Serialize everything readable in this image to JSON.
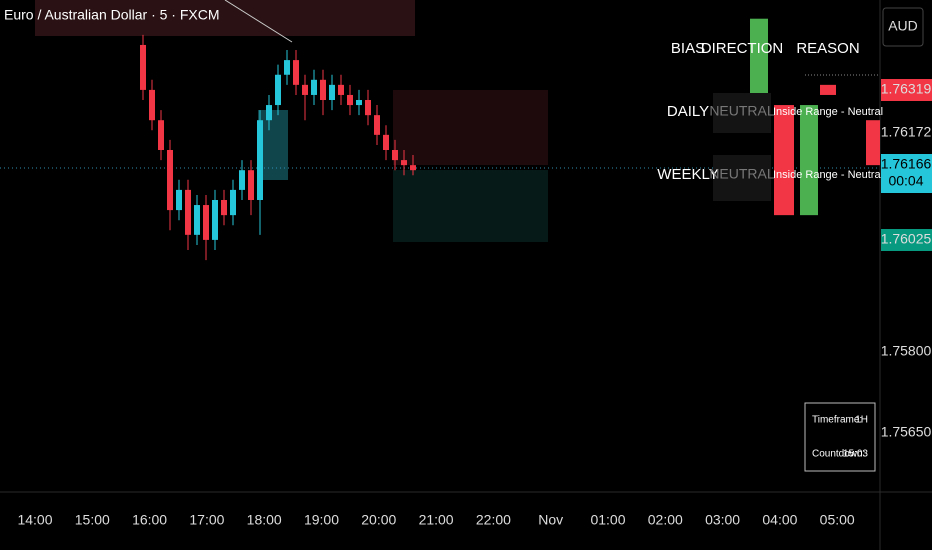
{
  "header": {
    "title": "Euro / Australian Dollar · 5 · FXCM",
    "currency": "AUD"
  },
  "chart": {
    "candles": [
      {
        "o": 1.76408,
        "h": 1.76428,
        "l": 1.76299,
        "c": 1.76319
      },
      {
        "o": 1.76319,
        "h": 1.76339,
        "l": 1.76239,
        "c": 1.76259
      },
      {
        "o": 1.76259,
        "h": 1.76279,
        "l": 1.7618,
        "c": 1.762
      },
      {
        "o": 1.762,
        "h": 1.7622,
        "l": 1.76041,
        "c": 1.76081
      },
      {
        "o": 1.76081,
        "h": 1.76141,
        "l": 1.76061,
        "c": 1.76121
      },
      {
        "o": 1.76121,
        "h": 1.76141,
        "l": 1.76002,
        "c": 1.76032
      },
      {
        "o": 1.76032,
        "h": 1.76111,
        "l": 1.76012,
        "c": 1.76091
      },
      {
        "o": 1.76091,
        "h": 1.76111,
        "l": 1.75982,
        "c": 1.76022
      },
      {
        "o": 1.76022,
        "h": 1.76121,
        "l": 1.76002,
        "c": 1.76101
      },
      {
        "o": 1.76101,
        "h": 1.76121,
        "l": 1.76051,
        "c": 1.76071
      },
      {
        "o": 1.76071,
        "h": 1.76141,
        "l": 1.76051,
        "c": 1.76121
      },
      {
        "o": 1.76121,
        "h": 1.7618,
        "l": 1.76101,
        "c": 1.7616
      },
      {
        "o": 1.7616,
        "h": 1.7618,
        "l": 1.76071,
        "c": 1.76101
      },
      {
        "o": 1.76101,
        "h": 1.76279,
        "l": 1.76032,
        "c": 1.76259
      },
      {
        "o": 1.76259,
        "h": 1.76309,
        "l": 1.76239,
        "c": 1.76289
      },
      {
        "o": 1.76289,
        "h": 1.76369,
        "l": 1.76269,
        "c": 1.76349
      },
      {
        "o": 1.76349,
        "h": 1.76398,
        "l": 1.76329,
        "c": 1.76378
      },
      {
        "o": 1.76378,
        "h": 1.76398,
        "l": 1.76309,
        "c": 1.76329
      },
      {
        "o": 1.76329,
        "h": 1.76349,
        "l": 1.76259,
        "c": 1.76309
      },
      {
        "o": 1.76309,
        "h": 1.76359,
        "l": 1.76289,
        "c": 1.76339
      },
      {
        "o": 1.76339,
        "h": 1.76359,
        "l": 1.76269,
        "c": 1.76299
      },
      {
        "o": 1.76299,
        "h": 1.76349,
        "l": 1.76279,
        "c": 1.76329
      },
      {
        "o": 1.76329,
        "h": 1.76349,
        "l": 1.76289,
        "c": 1.76309
      },
      {
        "o": 1.76309,
        "h": 1.76329,
        "l": 1.76269,
        "c": 1.76289
      },
      {
        "o": 1.76289,
        "h": 1.76319,
        "l": 1.76269,
        "c": 1.76299
      },
      {
        "o": 1.76299,
        "h": 1.76319,
        "l": 1.76249,
        "c": 1.76269
      },
      {
        "o": 1.76269,
        "h": 1.76289,
        "l": 1.7621,
        "c": 1.7623
      },
      {
        "o": 1.7623,
        "h": 1.76249,
        "l": 1.7618,
        "c": 1.762
      },
      {
        "o": 1.762,
        "h": 1.7622,
        "l": 1.7616,
        "c": 1.7618
      },
      {
        "o": 1.7618,
        "h": 1.762,
        "l": 1.7615,
        "c": 1.7617
      },
      {
        "o": 1.7617,
        "h": 1.7619,
        "l": 1.7615,
        "c": 1.7616
      }
    ],
    "htf_candles": [
      {
        "o": 1.76299,
        "c": 1.7646
      },
      {
        "o": 1.76289,
        "c": 1.76071
      },
      {
        "o": 1.76071,
        "c": 1.76289
      },
      {
        "o": 1.76329,
        "c": 1.76309
      },
      {
        "o": 1.76259,
        "c": 1.7617
      }
    ],
    "price_labels": [
      "1.76319",
      "1.76172",
      "1.76166",
      "00:04",
      "1.76025",
      "1.75800",
      "1.75650"
    ],
    "time_labels": [
      "14:00",
      "15:00",
      "16:00",
      "17:00",
      "18:00",
      "19:00",
      "20:00",
      "21:00",
      "22:00",
      "Nov",
      "01:00",
      "02:00",
      "03:00",
      "04:00",
      "05:00"
    ]
  },
  "bias_table": {
    "headers": [
      "BIAS",
      "DIRECTION",
      "REASON"
    ],
    "rows": [
      [
        "DAILY",
        "NEUTRAL",
        "Inside Range - Neutral"
      ],
      [
        "WEEKLY",
        "NEUTRAL",
        "Inside Range - Neutral"
      ]
    ]
  },
  "info_box": {
    "rows": [
      [
        "Timeframe:",
        "1H"
      ],
      [
        "Countdown:",
        "15:03"
      ]
    ]
  }
}
